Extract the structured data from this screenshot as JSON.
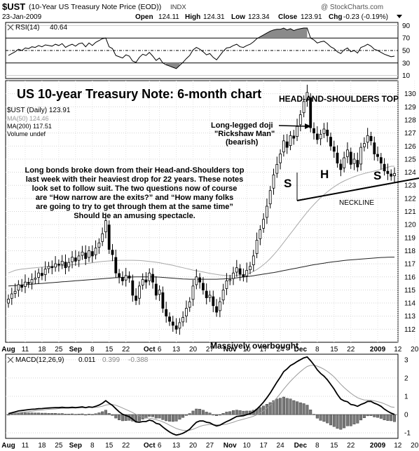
{
  "header": {
    "symbol": "$UST",
    "description": "(10-Year US Treasury Note Price (EOD))",
    "exchange": "INDX",
    "date": "23-Jan-2009",
    "open_label": "Open",
    "open": "124.11",
    "high_label": "High",
    "high": "124.31",
    "low_label": "Low",
    "low": "123.34",
    "close_label": "Close",
    "close": "123.91",
    "chg_label": "Chg",
    "chg": "-0.23 (-0.19%)",
    "watermark": "@ StockCharts.com"
  },
  "rsi_panel": {
    "label": "RSI(14)",
    "value": "40.64",
    "levels": [
      "90",
      "70",
      "50",
      "30",
      "10"
    ]
  },
  "main_panel": {
    "title": "US 10-year Treasury Note: 6-month chart",
    "pattern_title": "HEAD-AND-SHOULDERS TOP",
    "legend_series": "$UST (Daily) 123.91",
    "legend_ma50": "MA(50) 124.46",
    "legend_ma200": "MA(200) 117.51",
    "legend_volume": "Volume undef",
    "doji_line1": "Long-legged doji",
    "doji_line2": "\"Rickshaw Man\"",
    "doji_line3": "(bearish)",
    "label_s_left": "S",
    "label_h": "H",
    "label_s_right": "S",
    "neckline_label": "NECKLINE",
    "overbought_label": "Massively overbought",
    "commentary": [
      "Long bonds broke down from their Head-and-Shoulders top",
      "last week with their heaviest drop for 22 years. These notes",
      "look set to follow suit. The two questions now of course",
      "are “How narrow are the exits?” and “How many folks",
      "are going to try to get through them at the same time”",
      "Should be an amusing spectacle."
    ]
  },
  "macd_panel": {
    "label": "MACD(12,26,9)",
    "macd": "0.011",
    "signal": "0.399",
    "hist": "-0.388"
  },
  "x_axis_labels": [
    {
      "t": "Aug",
      "i": 0,
      "bold": true
    },
    {
      "t": "11",
      "i": 5
    },
    {
      "t": "18",
      "i": 10
    },
    {
      "t": "25",
      "i": 15
    },
    {
      "t": "Sep",
      "i": 20,
      "bold": true
    },
    {
      "t": "8",
      "i": 25
    },
    {
      "t": "15",
      "i": 30
    },
    {
      "t": "22",
      "i": 35
    },
    {
      "t": "Oct",
      "i": 42,
      "bold": true
    },
    {
      "t": "6",
      "i": 45
    },
    {
      "t": "13",
      "i": 50
    },
    {
      "t": "20",
      "i": 55
    },
    {
      "t": "27",
      "i": 60
    },
    {
      "t": "Nov",
      "i": 66,
      "bold": true
    },
    {
      "t": "10",
      "i": 71
    },
    {
      "t": "17",
      "i": 76
    },
    {
      "t": "24",
      "i": 81
    },
    {
      "t": "Dec",
      "i": 87,
      "bold": true
    },
    {
      "t": "8",
      "i": 92
    },
    {
      "t": "15",
      "i": 97
    },
    {
      "t": "22",
      "i": 102
    },
    {
      "t": "2009",
      "i": 110,
      "bold": true
    },
    {
      "t": "12",
      "i": 116
    },
    {
      "t": "20",
      "i": 121
    }
  ],
  "chart_data": {
    "type": "candlestick",
    "price_axis": {
      "min": 111,
      "max": 131,
      "ticks": [
        112,
        113,
        114,
        115,
        116,
        117,
        118,
        119,
        120,
        121,
        122,
        123,
        124,
        125,
        126,
        127,
        128,
        129,
        130
      ]
    },
    "rsi_axis": {
      "min": 5,
      "max": 95,
      "ticks": [
        10,
        30,
        50,
        70,
        90
      ]
    },
    "macd_axis": {
      "min": -1.3,
      "max": 3.3,
      "ticks": [
        -1,
        0,
        1,
        2,
        3
      ]
    },
    "closes": [
      114.3,
      114.7,
      114.9,
      115.4,
      115.2,
      115.6,
      115.5,
      115.8,
      115.9,
      116.3,
      116.1,
      116.6,
      116.8,
      116.7,
      117.0,
      116.9,
      117.2,
      116.7,
      117.1,
      117.5,
      117.2,
      117.6,
      117.9,
      117.4,
      118.0,
      117.6,
      118.2,
      118.6,
      119.3,
      120.3,
      118.1,
      117.7,
      116.3,
      116.0,
      115.7,
      116.1,
      115.9,
      114.6,
      114.2,
      115.3,
      115.8,
      115.6,
      116.3,
      115.6,
      114.6,
      115.0,
      113.6,
      113.0,
      112.6,
      112.3,
      112.0,
      112.5,
      112.9,
      113.6,
      114.1,
      115.3,
      116.0,
      115.6,
      115.0,
      114.4,
      114.6,
      113.8,
      113.3,
      114.1,
      115.0,
      115.7,
      115.8,
      116.3,
      116.7,
      116.2,
      116.0,
      116.5,
      116.8,
      117.6,
      118.8,
      119.6,
      120.4,
      121.4,
      122.6,
      123.8,
      124.6,
      125.4,
      126.4,
      125.9,
      126.8,
      126.6,
      127.5,
      128.4,
      129.4,
      130.1,
      127.4,
      127.0,
      126.5,
      126.9,
      127.3,
      126.8,
      126.0,
      125.6,
      124.7,
      124.2,
      125.1,
      125.7,
      124.6,
      125.0,
      124.4,
      125.9,
      126.2,
      126.8,
      126.4,
      125.4,
      125.2,
      124.7,
      124.1,
      123.9,
      123.7,
      123.9
    ],
    "ma50": [
      116.3,
      116.4,
      116.5,
      116.55,
      116.6,
      116.62,
      116.65,
      116.68,
      116.7,
      116.72,
      116.74,
      116.76,
      116.78,
      116.8,
      116.82,
      116.84,
      116.86,
      116.88,
      116.9,
      116.92,
      116.95,
      116.98,
      117.0,
      117.02,
      117.05,
      117.08,
      117.12,
      117.15,
      117.18,
      117.2,
      117.22,
      117.24,
      117.25,
      117.26,
      117.27,
      117.27,
      117.27,
      117.27,
      117.26,
      117.25,
      117.23,
      117.21,
      117.18,
      117.15,
      117.12,
      117.08,
      117.03,
      116.98,
      116.93,
      116.88,
      116.82,
      116.76,
      116.7,
      116.64,
      116.58,
      116.52,
      116.47,
      116.42,
      116.37,
      116.32,
      116.27,
      116.23,
      116.19,
      116.15,
      116.12,
      116.1,
      116.09,
      116.08,
      116.1,
      116.13,
      116.17,
      116.22,
      116.3,
      116.42,
      116.56,
      116.73,
      116.93,
      117.15,
      117.4,
      117.68,
      117.98,
      118.3,
      118.63,
      118.97,
      119.3,
      119.63,
      119.97,
      120.3,
      120.63,
      120.95,
      121.25,
      121.53,
      121.8,
      122.05,
      122.28,
      122.5,
      122.7,
      122.88,
      123.05,
      123.2,
      123.33,
      123.45,
      123.56,
      123.66,
      123.75,
      123.83,
      123.9,
      123.97,
      124.03,
      124.09,
      124.15,
      124.22,
      124.3,
      124.38,
      124.46,
      124.46
    ],
    "ma200": [
      115.3,
      115.32,
      115.34,
      115.36,
      115.38,
      115.4,
      115.42,
      115.44,
      115.46,
      115.48,
      115.5,
      115.52,
      115.54,
      115.56,
      115.58,
      115.6,
      115.62,
      115.64,
      115.66,
      115.68,
      115.7,
      115.72,
      115.74,
      115.76,
      115.78,
      115.8,
      115.82,
      115.84,
      115.86,
      115.88,
      115.9,
      115.92,
      115.94,
      115.95,
      115.96,
      115.97,
      115.98,
      115.99,
      116.0,
      116.0,
      116.0,
      116.0,
      116.0,
      116.0,
      115.99,
      115.98,
      115.96,
      115.94,
      115.92,
      115.9,
      115.88,
      115.86,
      115.84,
      115.83,
      115.82,
      115.82,
      115.82,
      115.82,
      115.82,
      115.82,
      115.82,
      115.82,
      115.82,
      115.83,
      115.84,
      115.86,
      115.88,
      115.9,
      115.93,
      115.96,
      115.99,
      116.02,
      116.05,
      116.09,
      116.13,
      116.17,
      116.21,
      116.25,
      116.29,
      116.33,
      116.38,
      116.43,
      116.48,
      116.53,
      116.58,
      116.63,
      116.68,
      116.73,
      116.78,
      116.83,
      116.88,
      116.93,
      116.97,
      117.01,
      117.05,
      117.09,
      117.13,
      117.16,
      117.19,
      117.22,
      117.25,
      117.28,
      117.3,
      117.32,
      117.34,
      117.36,
      117.38,
      117.4,
      117.42,
      117.44,
      117.46,
      117.48,
      117.49,
      117.5,
      117.51,
      117.51
    ],
    "rsi": [
      42,
      45,
      48,
      52,
      50,
      54,
      53,
      56,
      55,
      58,
      56,
      59,
      58,
      57,
      60,
      58,
      61,
      55,
      58,
      60,
      57,
      61,
      62,
      56,
      62,
      58,
      63,
      66,
      69,
      70,
      56,
      53,
      42,
      40,
      38,
      43,
      41,
      33,
      31,
      39,
      44,
      42,
      47,
      41,
      34,
      38,
      30,
      27,
      25,
      23,
      21,
      26,
      31,
      37,
      42,
      51,
      55,
      52,
      48,
      43,
      45,
      39,
      35,
      42,
      49,
      54,
      55,
      58,
      60,
      56,
      55,
      58,
      60,
      64,
      69,
      72,
      75,
      78,
      81,
      83,
      84,
      84,
      86,
      83,
      85,
      82,
      84,
      85,
      86,
      86,
      70,
      67,
      62,
      64,
      65,
      61,
      56,
      53,
      48,
      45,
      51,
      54,
      48,
      50,
      46,
      55,
      57,
      60,
      57,
      52,
      50,
      47,
      44,
      42,
      40,
      41
    ],
    "macd": [
      0.05,
      0.1,
      0.15,
      0.2,
      0.22,
      0.25,
      0.27,
      0.29,
      0.3,
      0.32,
      0.33,
      0.35,
      0.36,
      0.37,
      0.38,
      0.38,
      0.4,
      0.38,
      0.38,
      0.4,
      0.38,
      0.4,
      0.42,
      0.38,
      0.42,
      0.4,
      0.45,
      0.52,
      0.62,
      0.76,
      0.62,
      0.5,
      0.32,
      0.15,
      0.02,
      -0.05,
      -0.12,
      -0.25,
      -0.4,
      -0.42,
      -0.38,
      -0.38,
      -0.3,
      -0.35,
      -0.48,
      -0.52,
      -0.68,
      -0.82,
      -0.95,
      -1.05,
      -1.12,
      -1.08,
      -1.02,
      -0.92,
      -0.8,
      -0.6,
      -0.42,
      -0.35,
      -0.35,
      -0.42,
      -0.45,
      -0.55,
      -0.62,
      -0.58,
      -0.48,
      -0.38,
      -0.3,
      -0.2,
      -0.1,
      -0.08,
      -0.06,
      0.0,
      0.05,
      0.15,
      0.3,
      0.48,
      0.68,
      0.92,
      1.18,
      1.48,
      1.78,
      2.05,
      2.35,
      2.5,
      2.68,
      2.78,
      2.9,
      3.0,
      3.1,
      3.15,
      2.95,
      2.72,
      2.45,
      2.25,
      2.1,
      1.9,
      1.65,
      1.4,
      1.1,
      0.85,
      0.75,
      0.7,
      0.55,
      0.52,
      0.45,
      0.55,
      0.62,
      0.72,
      0.72,
      0.62,
      0.55,
      0.45,
      0.3,
      0.18,
      0.08,
      0.01
    ],
    "signal": [
      0.05,
      0.06,
      0.08,
      0.1,
      0.12,
      0.15,
      0.17,
      0.19,
      0.21,
      0.23,
      0.25,
      0.27,
      0.29,
      0.3,
      0.31,
      0.33,
      0.34,
      0.35,
      0.35,
      0.36,
      0.36,
      0.37,
      0.38,
      0.38,
      0.39,
      0.39,
      0.4,
      0.42,
      0.46,
      0.52,
      0.55,
      0.55,
      0.51,
      0.44,
      0.36,
      0.28,
      0.2,
      0.11,
      0.01,
      -0.07,
      -0.13,
      -0.18,
      -0.2,
      -0.23,
      -0.28,
      -0.33,
      -0.4,
      -0.48,
      -0.58,
      -0.67,
      -0.76,
      -0.82,
      -0.86,
      -0.87,
      -0.86,
      -0.8,
      -0.73,
      -0.65,
      -0.59,
      -0.56,
      -0.54,
      -0.54,
      -0.56,
      -0.56,
      -0.55,
      -0.52,
      -0.47,
      -0.42,
      -0.35,
      -0.3,
      -0.25,
      -0.2,
      -0.15,
      -0.09,
      -0.01,
      0.09,
      0.21,
      0.35,
      0.52,
      0.71,
      0.92,
      1.15,
      1.39,
      1.61,
      1.82,
      2.01,
      2.19,
      2.35,
      2.5,
      2.63,
      2.69,
      2.7,
      2.65,
      2.57,
      2.48,
      2.36,
      2.22,
      2.06,
      1.86,
      1.66,
      1.48,
      1.32,
      1.17,
      1.04,
      0.92,
      0.85,
      0.8,
      0.79,
      0.78,
      0.75,
      0.71,
      0.66,
      0.59,
      0.51,
      0.42,
      0.4
    ],
    "volume": "undef"
  }
}
